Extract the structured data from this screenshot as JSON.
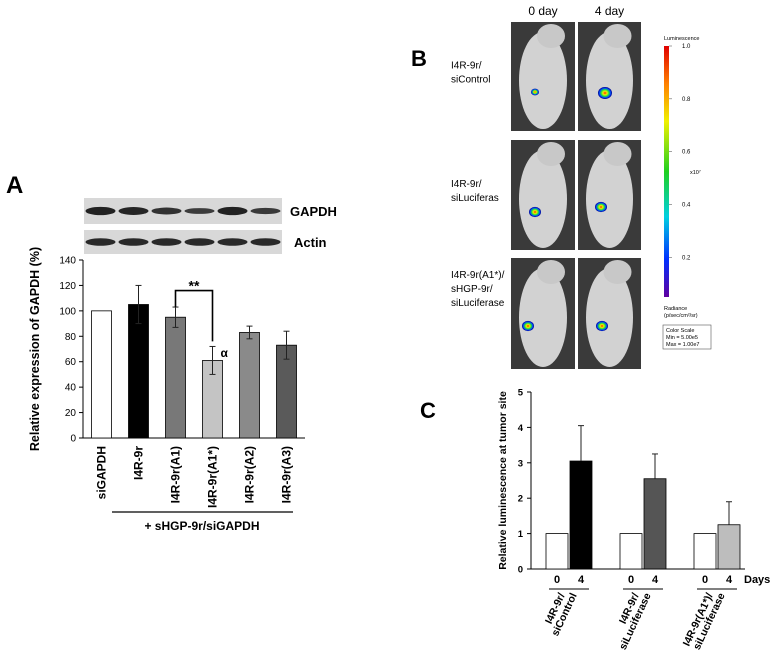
{
  "chart_data": [
    {
      "type": "bar",
      "panel": "A",
      "blot_labels": [
        "GAPDH",
        "Actin"
      ],
      "ylabel": "Relative expression of GAPDH (%)",
      "categories": [
        "siGAPDH",
        "I4R-9r",
        "I4R-9r(A1)",
        "I4R-9r(A1*)",
        "I4R-9r(A2)",
        "I4R-9r(A3)"
      ],
      "values": [
        100,
        105,
        95,
        61,
        83,
        73
      ],
      "errors": [
        0,
        15,
        8,
        11,
        5,
        11
      ],
      "colors": [
        "#ffffff",
        "#000000",
        "#787878",
        "#c4c4c4",
        "#8a8a8a",
        "#5a5a5a"
      ],
      "ylim": [
        0,
        140
      ],
      "yticks": [
        0,
        20,
        40,
        60,
        80,
        100,
        120,
        140
      ],
      "significance": "**",
      "note": "α",
      "group_label": "+ sHGP-9r/siGAPDH"
    },
    {
      "type": "image",
      "panel": "B",
      "columns": [
        "0 day",
        "4 day"
      ],
      "rows": [
        [
          "I4R-9r/",
          "siControl"
        ],
        [
          "I4R-9r/",
          "siLuciferas"
        ],
        [
          "I4R-9r(A1*)/",
          "sHGP-9r/",
          "siLuciferase"
        ]
      ],
      "colorbar": {
        "title": "Luminescence",
        "clim": [
          0.05,
          1
        ],
        "ticks": [
          {
            "value": 1,
            "label": "1.0"
          },
          0.8,
          0.6,
          0.4,
          0.2
        ],
        "multiplier": "x10⁷",
        "unit": [
          "Radiance",
          "(p/sec/cm²/sr)"
        ],
        "scale": [
          "Color Scale",
          "Min = 5.00e5",
          "Max = 1.00e7"
        ]
      }
    },
    {
      "type": "grouped_bar",
      "panel": "C",
      "ylabel": "Relative luminescence at tumor site",
      "categories": [
        [
          "I4R-9r/",
          "siControl"
        ],
        [
          "I4R-9r/",
          "siLuciferase"
        ],
        [
          "I4R-9r(A1*)/",
          "siLuciferase"
        ]
      ],
      "series": [
        {
          "name": "0",
          "color": "#ffffff",
          "values": [
            1,
            1,
            1
          ]
        },
        {
          "name": "4",
          "colors": [
            "#000000",
            "#555555",
            "#bdbdbd"
          ],
          "values": [
            3.05,
            2.55,
            1.25
          ],
          "errors": [
            1.0,
            0.7,
            0.65
          ]
        }
      ],
      "xlabel": "Days",
      "ylim": [
        0,
        5
      ],
      "yticks": [
        0,
        1,
        2,
        3,
        4,
        5
      ]
    }
  ]
}
